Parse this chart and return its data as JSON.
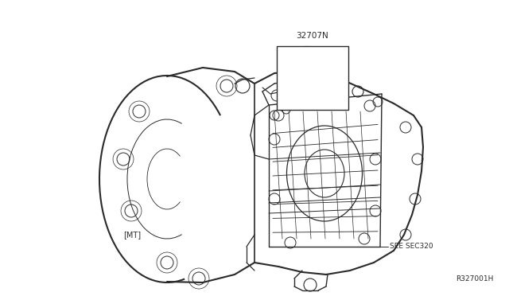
{
  "background_color": "#ffffff",
  "part_number_label": "32707N",
  "mt_label": "[MT]",
  "see_label": "SEE SEC320",
  "ref_label": "R327001H",
  "line_color": "#2a2a2a",
  "text_color": "#2a2a2a",
  "figsize": [
    6.4,
    3.72
  ],
  "dpi": 100
}
